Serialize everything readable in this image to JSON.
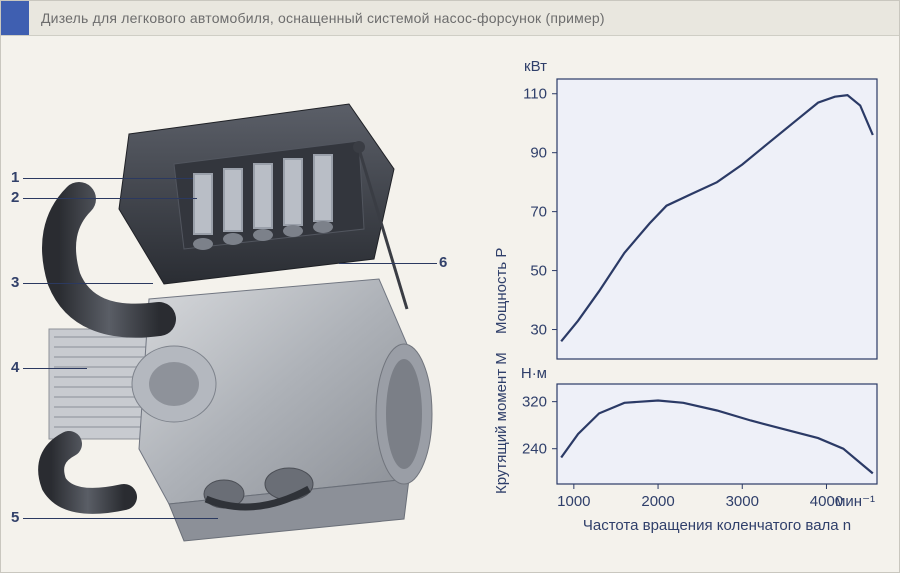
{
  "header": {
    "title": "Дизель для легкового автомобиля, оснащенный системой насос-форсунок (пример)"
  },
  "engine": {
    "callouts": [
      "1",
      "2",
      "3",
      "4",
      "5",
      "6"
    ]
  },
  "charts": {
    "panel_bg": "#eef0f8",
    "axis_color": "#2b3a66",
    "grid_color": "#c7cde0",
    "line_color": "#2b3a66",
    "line_width": 2.2,
    "tick_fontsize": 15,
    "label_fontsize": 15,
    "x": {
      "min": 800,
      "max": 4600,
      "ticks": [
        1000,
        2000,
        3000,
        4000
      ],
      "unit": "мин⁻¹",
      "label": "Частота вращения коленчатого вала n"
    },
    "power": {
      "unit": "кВт",
      "ylabel": "Мощность P",
      "ymin": 20,
      "ymax": 115,
      "yticks": [
        30,
        50,
        70,
        90,
        110
      ],
      "points": [
        [
          850,
          26
        ],
        [
          1050,
          33
        ],
        [
          1300,
          43
        ],
        [
          1600,
          56
        ],
        [
          1900,
          66
        ],
        [
          2100,
          72
        ],
        [
          2400,
          76
        ],
        [
          2700,
          80
        ],
        [
          3000,
          86
        ],
        [
          3300,
          93
        ],
        [
          3600,
          100
        ],
        [
          3900,
          107
        ],
        [
          4100,
          109
        ],
        [
          4250,
          109.5
        ],
        [
          4400,
          106
        ],
        [
          4550,
          96
        ]
      ]
    },
    "torque": {
      "unit": "Н·м",
      "ylabel": "Крутящий момент M",
      "ymin": 180,
      "ymax": 350,
      "yticks": [
        240,
        320
      ],
      "points": [
        [
          850,
          225
        ],
        [
          1050,
          265
        ],
        [
          1300,
          300
        ],
        [
          1600,
          318
        ],
        [
          2000,
          322
        ],
        [
          2300,
          318
        ],
        [
          2700,
          305
        ],
        [
          3100,
          288
        ],
        [
          3500,
          273
        ],
        [
          3900,
          258
        ],
        [
          4200,
          240
        ],
        [
          4450,
          210
        ],
        [
          4550,
          198
        ]
      ]
    }
  }
}
